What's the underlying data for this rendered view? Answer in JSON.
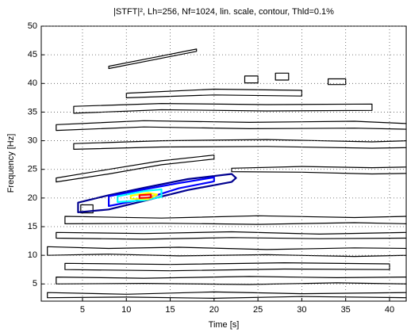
{
  "chart_data": {
    "type": "contour",
    "title": "|STFT|², Lh=256, Nf=1024, lin. scale, contour, Thld=0.1%",
    "x_label": "Time [s]",
    "y_label": "Frequency [Hz]",
    "xlim": [
      0.3,
      41.9
    ],
    "ylim": [
      2,
      50
    ],
    "xticks": [
      5,
      10,
      15,
      20,
      25,
      30,
      35,
      40
    ],
    "yticks": [
      5,
      10,
      15,
      20,
      25,
      30,
      35,
      40,
      45,
      50
    ],
    "grid": true,
    "contours": [
      {
        "color": "#000000",
        "x": [
          1,
          10,
          20,
          30,
          42,
          42,
          30,
          20,
          10,
          1
        ],
        "y": [
          3.5,
          3.2,
          3.6,
          3.3,
          3.5,
          2.6,
          2.8,
          2.5,
          2.7,
          2.6
        ]
      },
      {
        "color": "#000000",
        "x": [
          2,
          12,
          24,
          34,
          42,
          42,
          34,
          24,
          12,
          2
        ],
        "y": [
          6.2,
          6.0,
          6.3,
          6.1,
          6.2,
          5.0,
          5.2,
          4.9,
          5.1,
          5.0
        ]
      },
      {
        "color": "#000000",
        "x": [
          3,
          15,
          28,
          40,
          40,
          28,
          15,
          3
        ],
        "y": [
          8.6,
          8.4,
          8.7,
          8.5,
          7.5,
          7.6,
          7.3,
          7.5
        ]
      },
      {
        "color": "#000000",
        "x": [
          1,
          8,
          16,
          26,
          36,
          42,
          42,
          36,
          26,
          16,
          8,
          1
        ],
        "y": [
          11.5,
          11.2,
          11.4,
          11.0,
          11.3,
          11.2,
          10.0,
          9.8,
          10.1,
          9.9,
          10.2,
          10.0
        ]
      },
      {
        "color": "#000000",
        "x": [
          2,
          12,
          22,
          32,
          42,
          42,
          32,
          22,
          12,
          2
        ],
        "y": [
          14,
          13.8,
          14.1,
          13.7,
          14,
          13,
          12.9,
          13.1,
          12.8,
          13
        ]
      },
      {
        "color": "#000000",
        "x": [
          3,
          14,
          25,
          36,
          42,
          42,
          36,
          25,
          14,
          3
        ],
        "y": [
          16.8,
          16.5,
          16.9,
          16.6,
          16.8,
          15.5,
          15.7,
          15.4,
          15.6,
          15.5
        ]
      },
      {
        "color": "#000000",
        "x": [
          22,
          30,
          38,
          42,
          42,
          38,
          30,
          22
        ],
        "y": [
          25.2,
          25.5,
          25.3,
          25.4,
          24.3,
          24.2,
          24.5,
          24.6
        ]
      },
      {
        "color": "#000000",
        "x": [
          2,
          8,
          14,
          20,
          20,
          14,
          8,
          2
        ],
        "y": [
          23.5,
          25,
          26.5,
          27.5,
          26.8,
          25.8,
          24.2,
          22.8
        ]
      },
      {
        "color": "#000000",
        "x": [
          4,
          14,
          26,
          38,
          42,
          42,
          38,
          26,
          14,
          4
        ],
        "y": [
          29.5,
          30,
          30.2,
          29.8,
          30,
          28.8,
          28.7,
          29,
          28.9,
          28.5
        ]
      },
      {
        "color": "#000000",
        "x": [
          2,
          12,
          24,
          36,
          42,
          42,
          36,
          24,
          12,
          2
        ],
        "y": [
          32.8,
          33.5,
          33.2,
          33.4,
          33,
          32,
          32.2,
          32.1,
          32.4,
          31.8
        ]
      },
      {
        "color": "#000000",
        "x": [
          4,
          14,
          26,
          38,
          38,
          26,
          14,
          4
        ],
        "y": [
          36,
          36.5,
          36.3,
          36.4,
          35.3,
          35.2,
          35.4,
          34.8
        ]
      },
      {
        "color": "#000000",
        "x": [
          10,
          20,
          30,
          30,
          20,
          10
        ],
        "y": [
          38.3,
          39,
          38.8,
          37.8,
          38,
          37.5
        ]
      },
      {
        "color": "#000000",
        "x": [
          8,
          13,
          18,
          18,
          13,
          8
        ],
        "y": [
          43,
          44.5,
          46,
          45.6,
          44.1,
          42.6
        ]
      },
      {
        "color": "#000000",
        "x": [
          23.5,
          25,
          25,
          23.5
        ],
        "y": [
          41.3,
          41.3,
          40.1,
          40.1
        ]
      },
      {
        "color": "#000000",
        "x": [
          27,
          28.5,
          28.5,
          27
        ],
        "y": [
          41.8,
          41.8,
          40.6,
          40.6
        ]
      },
      {
        "color": "#000000",
        "x": [
          33,
          35,
          35,
          33
        ],
        "y": [
          40.8,
          40.8,
          39.8,
          39.8
        ]
      },
      {
        "color": "#000000",
        "x": [
          4.8,
          6.2,
          6.2,
          4.8
        ],
        "y": [
          18.8,
          18.8,
          17.4,
          17.4
        ]
      },
      {
        "color": "#00008f",
        "x": [
          4.5,
          8,
          12,
          17,
          22,
          22.5,
          22,
          17,
          12,
          8,
          4.5
        ],
        "y": [
          19.2,
          20.5,
          21.8,
          23.3,
          24.2,
          23.5,
          22.8,
          21.4,
          19.5,
          18.0,
          17.5
        ]
      },
      {
        "color": "#0000ff",
        "x": [
          8,
          12,
          16,
          20,
          20,
          16,
          12,
          8
        ],
        "y": [
          20.3,
          21.5,
          22.6,
          23.6,
          22.9,
          21.7,
          19.8,
          18.6
        ]
      },
      {
        "color": "#00ffff",
        "x": [
          9,
          12,
          14,
          14,
          12,
          9
        ],
        "y": [
          20.3,
          21.2,
          21.5,
          20.2,
          19.6,
          19.3
        ]
      },
      {
        "color": "#ffff00",
        "x": [
          10.5,
          12.5,
          13.5,
          12.5,
          10.5
        ],
        "y": [
          20.4,
          20.9,
          20.6,
          19.8,
          19.9
        ]
      },
      {
        "color": "#ff0000",
        "x": [
          11.5,
          12.8,
          12.8,
          11.5
        ],
        "y": [
          20.5,
          20.6,
          20.1,
          20.0
        ]
      }
    ]
  }
}
